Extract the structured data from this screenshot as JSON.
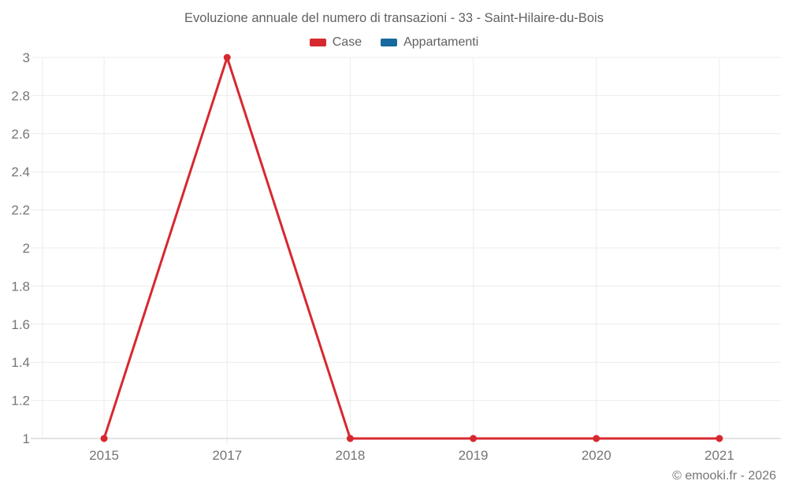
{
  "chart_data": {
    "type": "line",
    "title": "Evoluzione annuale del numero di transazioni - 33 - Saint-Hilaire-du-Bois",
    "categories": [
      "2015",
      "2017",
      "2018",
      "2019",
      "2020",
      "2021"
    ],
    "series": [
      {
        "name": "Case",
        "color": "#d7282f",
        "values": [
          1,
          3,
          1,
          1,
          1,
          1
        ]
      },
      {
        "name": "Appartamenti",
        "color": "#17699f",
        "values": []
      }
    ],
    "xlabel": "",
    "ylabel": "",
    "ylim": [
      1,
      3
    ],
    "ytick_step": 0.2,
    "ytick_labels": [
      "1",
      "1.2",
      "1.4",
      "1.6",
      "1.8",
      "2",
      "2.2",
      "2.4",
      "2.6",
      "2.8",
      "3"
    ],
    "grid": true,
    "legend_position": "top",
    "colors": {
      "gridline": "#ececec",
      "axis_line": "#c9c9c9",
      "tick_label": "#757575",
      "title_text": "#616161"
    }
  },
  "footer": {
    "copyright": "© emooki.fr - 2026"
  }
}
